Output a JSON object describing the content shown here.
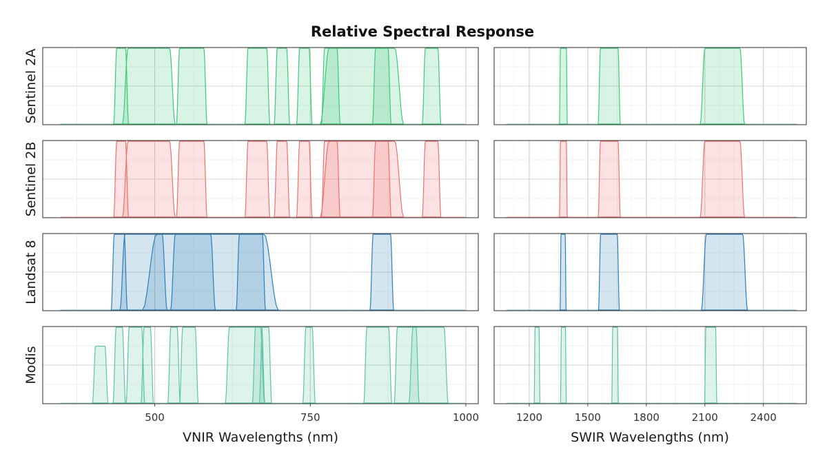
{
  "chart_data": {
    "type": "area",
    "title": "Relative Spectral Response",
    "panels": {
      "vnir": {
        "xlabel": "VNIR Wavelengths (nm)",
        "xlim": [
          320,
          1020
        ],
        "ticks": [
          500,
          750,
          1000
        ]
      },
      "swir": {
        "xlabel": "SWIR Wavelengths (nm)",
        "xlim": [
          1020,
          2620
        ],
        "ticks": [
          1200,
          1500,
          1800,
          2100,
          2400
        ],
        "tick_labels": [
          "1200",
          "1500",
          "1800",
          "2100",
          "2400"
        ]
      }
    },
    "ylim": [
      0,
      1
    ],
    "grid": true,
    "sensors": [
      {
        "name": "Sentinel 2A",
        "color": "#3cc97a",
        "bands": [
          {
            "lo": 439,
            "hi": 453,
            "peak": 1.0
          },
          {
            "lo": 457,
            "hi": 524,
            "peak": 1.0
          },
          {
            "lo": 540,
            "hi": 579,
            "peak": 1.0
          },
          {
            "lo": 650,
            "hi": 680,
            "peak": 1.0
          },
          {
            "lo": 697,
            "hi": 712,
            "peak": 1.0
          },
          {
            "lo": 733,
            "hi": 748,
            "peak": 1.0
          },
          {
            "lo": 773,
            "hi": 793,
            "peak": 1.0
          },
          {
            "lo": 780,
            "hi": 886,
            "peak": 1.0
          },
          {
            "lo": 855,
            "hi": 875,
            "peak": 1.0
          },
          {
            "lo": 935,
            "hi": 955,
            "peak": 1.0
          },
          {
            "lo": 1360,
            "hi": 1390,
            "peak": 1.0
          },
          {
            "lo": 1565,
            "hi": 1655,
            "peak": 1.0
          },
          {
            "lo": 2100,
            "hi": 2280,
            "peak": 1.0
          }
        ]
      },
      {
        "name": "Sentinel 2B",
        "color": "#f0706e",
        "bands": [
          {
            "lo": 439,
            "hi": 453,
            "peak": 1.0
          },
          {
            "lo": 457,
            "hi": 524,
            "peak": 1.0
          },
          {
            "lo": 540,
            "hi": 579,
            "peak": 1.0
          },
          {
            "lo": 650,
            "hi": 680,
            "peak": 1.0
          },
          {
            "lo": 697,
            "hi": 712,
            "peak": 1.0
          },
          {
            "lo": 733,
            "hi": 748,
            "peak": 1.0
          },
          {
            "lo": 773,
            "hi": 793,
            "peak": 1.0
          },
          {
            "lo": 780,
            "hi": 886,
            "peak": 1.0
          },
          {
            "lo": 855,
            "hi": 875,
            "peak": 1.0
          },
          {
            "lo": 935,
            "hi": 955,
            "peak": 1.0
          },
          {
            "lo": 1360,
            "hi": 1390,
            "peak": 1.0
          },
          {
            "lo": 1565,
            "hi": 1655,
            "peak": 1.0
          },
          {
            "lo": 2100,
            "hi": 2280,
            "peak": 1.0
          }
        ]
      },
      {
        "name": "Landsat 8",
        "color": "#2a7fb6",
        "bands": [
          {
            "lo": 435,
            "hi": 451,
            "peak": 1.0
          },
          {
            "lo": 452,
            "hi": 512,
            "peak": 1.0
          },
          {
            "lo": 503,
            "hi": 676,
            "peak": 1.0
          },
          {
            "lo": 533,
            "hi": 590,
            "peak": 1.0
          },
          {
            "lo": 636,
            "hi": 673,
            "peak": 1.0
          },
          {
            "lo": 851,
            "hi": 879,
            "peak": 1.0
          },
          {
            "lo": 1363,
            "hi": 1384,
            "peak": 1.0
          },
          {
            "lo": 1566,
            "hi": 1651,
            "peak": 1.0
          },
          {
            "lo": 2107,
            "hi": 2294,
            "peak": 1.0
          }
        ]
      },
      {
        "name": "Modis",
        "color": "#5dc3a6",
        "bands": [
          {
            "lo": 405,
            "hi": 420,
            "peak": 0.75
          },
          {
            "lo": 438,
            "hi": 448,
            "peak": 1.0
          },
          {
            "lo": 459,
            "hi": 479,
            "peak": 1.0
          },
          {
            "lo": 483,
            "hi": 493,
            "peak": 1.0
          },
          {
            "lo": 526,
            "hi": 536,
            "peak": 1.0
          },
          {
            "lo": 545,
            "hi": 565,
            "peak": 1.0
          },
          {
            "lo": 620,
            "hi": 670,
            "peak": 1.0
          },
          {
            "lo": 662,
            "hi": 672,
            "peak": 1.0
          },
          {
            "lo": 673,
            "hi": 683,
            "peak": 1.0
          },
          {
            "lo": 743,
            "hi": 753,
            "peak": 1.0
          },
          {
            "lo": 841,
            "hi": 876,
            "peak": 1.0
          },
          {
            "lo": 890,
            "hi": 920,
            "peak": 1.0
          },
          {
            "lo": 915,
            "hi": 965,
            "peak": 1.0
          },
          {
            "lo": 1230,
            "hi": 1250,
            "peak": 1.0
          },
          {
            "lo": 1365,
            "hi": 1385,
            "peak": 1.0
          },
          {
            "lo": 1628,
            "hi": 1652,
            "peak": 1.0
          },
          {
            "lo": 2105,
            "hi": 2155,
            "peak": 1.0
          }
        ]
      }
    ]
  }
}
